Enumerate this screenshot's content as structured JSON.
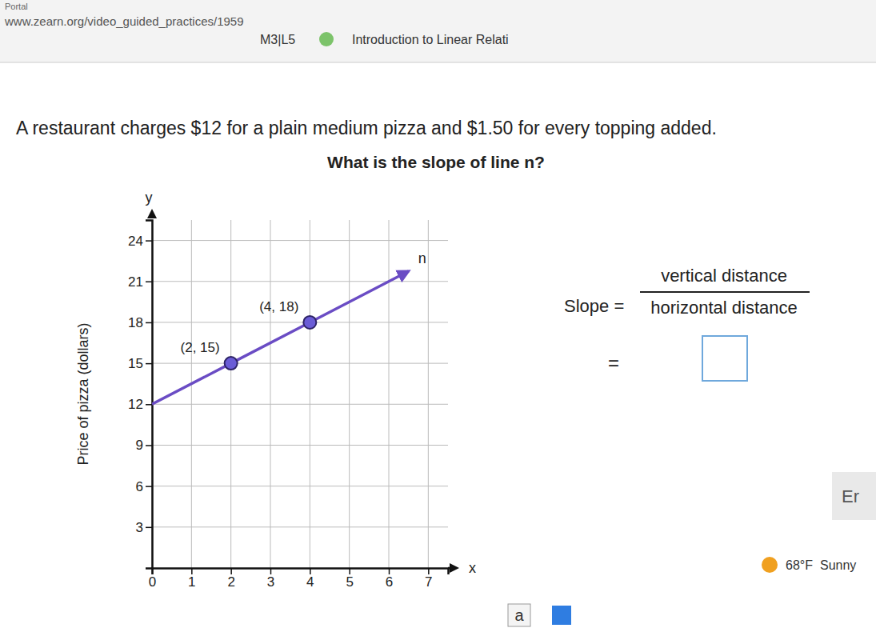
{
  "page": {
    "portal": "Portal",
    "url": "www.zearn.org/video_guided_practices/1959",
    "lesson": "M3|L5",
    "lesson_title": "Introduction to Linear Relati",
    "problem": "A restaurant charges $12 for a plain medium pizza and $1.50 for every topping added.",
    "question": "What is the slope of line n?",
    "slope_label": "Slope =",
    "numerator": "vertical distance",
    "denominator": "horizontal distance",
    "equals": "=",
    "button": "Er",
    "temperature": "68°F",
    "weather": "Sunny",
    "taskbar_icon": "a"
  },
  "chart_data": {
    "type": "line",
    "x_axis_label": "x",
    "y_axis_label": "y",
    "y_axis_title": "Price of pizza (dollars)",
    "x": [
      0,
      2,
      4,
      6.5
    ],
    "series": [
      {
        "name": "n",
        "color": "#6a4cc4",
        "values": [
          12,
          15,
          18,
          21.75
        ],
        "line_style": "arrow"
      }
    ],
    "annotations": [
      {
        "x": 2,
        "y": 15,
        "text": "(2, 15)"
      },
      {
        "x": 4,
        "y": 18,
        "text": "(4, 18)"
      }
    ],
    "xlim": [
      0,
      7.5
    ],
    "ylim": [
      0,
      25.5
    ],
    "xticks": [
      0,
      1,
      2,
      3,
      4,
      5,
      6,
      7
    ],
    "yticks": [
      3,
      6,
      9,
      12,
      15,
      18,
      21,
      24
    ],
    "grid": true
  }
}
